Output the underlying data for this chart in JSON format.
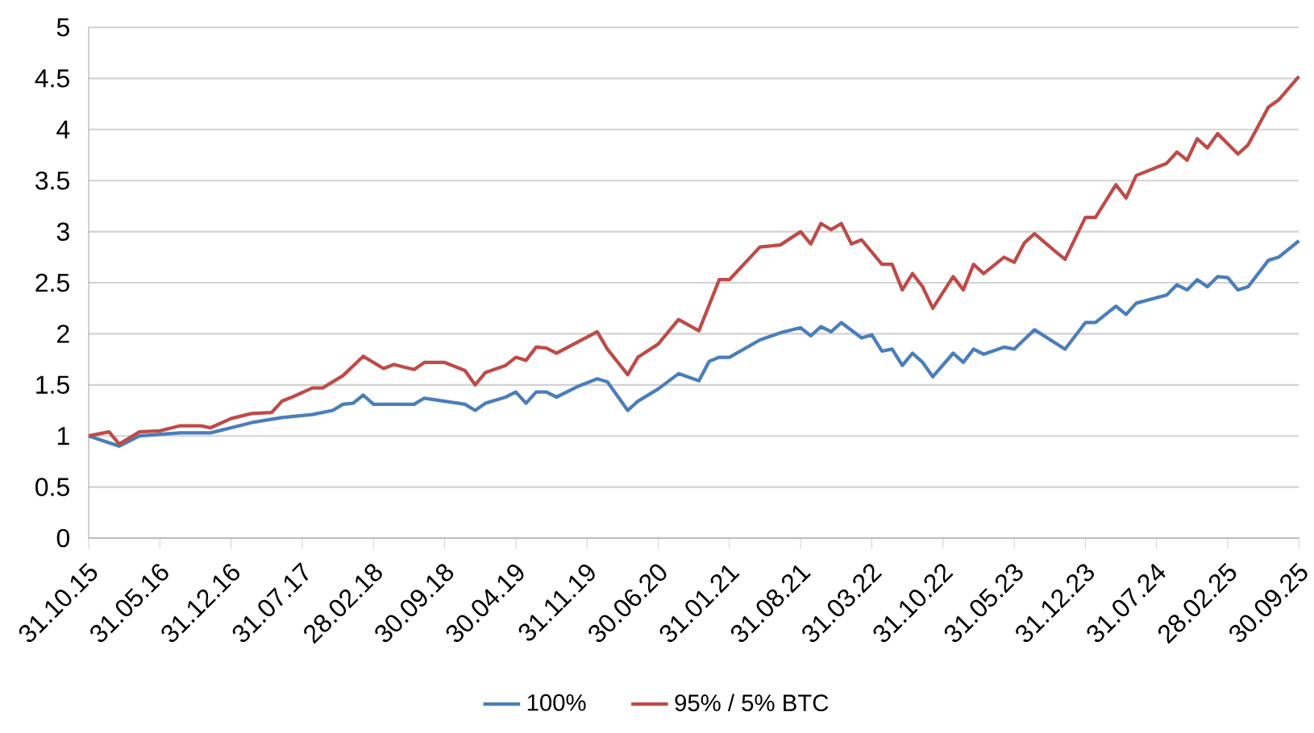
{
  "chart_data": {
    "type": "line",
    "line_style": "solid",
    "marker": "none",
    "grid": "y",
    "legend": "bottom",
    "xlim": [
      "2015-10",
      "2025-09"
    ],
    "xticks": [
      {
        "value": "2015-10",
        "label": "31.10.15"
      },
      {
        "value": "2016-05",
        "label": "31.05.16"
      },
      {
        "value": "2016-12",
        "label": "31.12.16"
      },
      {
        "value": "2017-07",
        "label": "31.07.17"
      },
      {
        "value": "2018-02",
        "label": "28.02.18"
      },
      {
        "value": "2018-09",
        "label": "30.09.18"
      },
      {
        "value": "2019-04",
        "label": "30.04.19"
      },
      {
        "value": "2019-11",
        "label": "31.11.19"
      },
      {
        "value": "2020-06",
        "label": "30.06.20"
      },
      {
        "value": "2021-01",
        "label": "31.01.21"
      },
      {
        "value": "2021-08",
        "label": "31.08.21"
      },
      {
        "value": "2022-03",
        "label": "31.03.22"
      },
      {
        "value": "2022-10",
        "label": "31.10.22"
      },
      {
        "value": "2023-05",
        "label": "31.05.23"
      },
      {
        "value": "2023-12",
        "label": "31.12.23"
      },
      {
        "value": "2024-07",
        "label": "31.07.24"
      },
      {
        "value": "2025-02",
        "label": "28.02.25"
      },
      {
        "value": "2025-09",
        "label": "30.09.25"
      }
    ],
    "ylim": [
      0,
      5
    ],
    "yticks": [
      0,
      0.5,
      1,
      1.5,
      2,
      2.5,
      3,
      3.5,
      4,
      4.5,
      5
    ],
    "series": [
      {
        "name": "100%",
        "color": "#4a7ebb",
        "x": [
          "2015-10",
          "2016-01",
          "2016-03",
          "2016-07",
          "2016-10",
          "2017-02",
          "2017-05",
          "2017-08",
          "2017-10",
          "2017-11",
          "2017-12",
          "2018-01",
          "2018-02",
          "2018-06",
          "2018-07",
          "2018-09",
          "2018-11",
          "2018-12",
          "2019-01",
          "2019-03",
          "2019-04",
          "2019-05",
          "2019-06",
          "2019-07",
          "2019-08",
          "2019-10",
          "2019-12",
          "2020-01",
          "2020-03",
          "2020-04",
          "2020-06",
          "2020-08",
          "2020-10",
          "2020-11",
          "2020-12",
          "2021-01",
          "2021-04",
          "2021-06",
          "2021-08",
          "2021-09",
          "2021-10",
          "2021-11",
          "2021-12",
          "2022-02",
          "2022-03",
          "2022-04",
          "2022-05",
          "2022-06",
          "2022-07",
          "2022-08",
          "2022-09",
          "2022-11",
          "2022-12",
          "2023-01",
          "2023-02",
          "2023-04",
          "2023-05",
          "2023-07",
          "2023-10",
          "2023-12",
          "2024-01",
          "2024-03",
          "2024-04",
          "2024-05",
          "2024-08",
          "2024-09",
          "2024-10",
          "2024-11",
          "2024-12",
          "2025-01",
          "2025-02",
          "2025-03",
          "2025-04",
          "2025-06",
          "2025-07",
          "2025-09"
        ],
        "values": [
          1.0,
          0.9,
          1.0,
          1.03,
          1.03,
          1.13,
          1.18,
          1.21,
          1.25,
          1.31,
          1.32,
          1.4,
          1.31,
          1.31,
          1.37,
          1.34,
          1.31,
          1.25,
          1.32,
          1.38,
          1.43,
          1.32,
          1.43,
          1.43,
          1.38,
          1.48,
          1.56,
          1.53,
          1.25,
          1.34,
          1.46,
          1.61,
          1.54,
          1.73,
          1.77,
          1.77,
          1.94,
          2.01,
          2.06,
          1.98,
          2.07,
          2.02,
          2.11,
          1.96,
          1.99,
          1.83,
          1.85,
          1.69,
          1.81,
          1.72,
          1.58,
          1.81,
          1.72,
          1.85,
          1.8,
          1.87,
          1.85,
          2.04,
          1.85,
          2.11,
          2.11,
          2.27,
          2.19,
          2.3,
          2.38,
          2.48,
          2.43,
          2.53,
          2.46,
          2.56,
          2.55,
          2.43,
          2.46,
          2.72,
          2.75,
          2.91
        ]
      },
      {
        "name": "95% / 5% BTC",
        "color": "#be4b48",
        "x": [
          "2015-10",
          "2015-12",
          "2016-01",
          "2016-03",
          "2016-05",
          "2016-07",
          "2016-09",
          "2016-10",
          "2016-12",
          "2017-02",
          "2017-04",
          "2017-05",
          "2017-06",
          "2017-08",
          "2017-09",
          "2017-11",
          "2018-01",
          "2018-03",
          "2018-04",
          "2018-06",
          "2018-07",
          "2018-09",
          "2018-11",
          "2018-12",
          "2019-01",
          "2019-03",
          "2019-04",
          "2019-05",
          "2019-06",
          "2019-07",
          "2019-08",
          "2019-12",
          "2020-01",
          "2020-03",
          "2020-04",
          "2020-06",
          "2020-08",
          "2020-10",
          "2020-12",
          "2021-01",
          "2021-04",
          "2021-06",
          "2021-08",
          "2021-09",
          "2021-10",
          "2021-11",
          "2021-12",
          "2022-01",
          "2022-02",
          "2022-04",
          "2022-05",
          "2022-06",
          "2022-07",
          "2022-08",
          "2022-09",
          "2022-11",
          "2022-12",
          "2023-01",
          "2023-02",
          "2023-04",
          "2023-05",
          "2023-06",
          "2023-07",
          "2023-09",
          "2023-10",
          "2023-12",
          "2024-01",
          "2024-03",
          "2024-04",
          "2024-05",
          "2024-08",
          "2024-09",
          "2024-10",
          "2024-11",
          "2024-12",
          "2025-01",
          "2025-03",
          "2025-04",
          "2025-06",
          "2025-07",
          "2025-09"
        ],
        "values": [
          1.0,
          1.04,
          0.92,
          1.04,
          1.05,
          1.1,
          1.1,
          1.08,
          1.17,
          1.22,
          1.23,
          1.34,
          1.38,
          1.47,
          1.47,
          1.59,
          1.78,
          1.66,
          1.7,
          1.65,
          1.72,
          1.72,
          1.64,
          1.5,
          1.62,
          1.69,
          1.77,
          1.74,
          1.87,
          1.86,
          1.81,
          2.02,
          1.85,
          1.6,
          1.77,
          1.9,
          2.14,
          2.03,
          2.53,
          2.53,
          2.85,
          2.87,
          3.0,
          2.88,
          3.08,
          3.02,
          3.08,
          2.88,
          2.92,
          2.68,
          2.68,
          2.43,
          2.59,
          2.46,
          2.25,
          2.56,
          2.43,
          2.68,
          2.59,
          2.75,
          2.7,
          2.89,
          2.98,
          2.81,
          2.73,
          3.14,
          3.14,
          3.46,
          3.33,
          3.55,
          3.67,
          3.78,
          3.7,
          3.91,
          3.82,
          3.96,
          3.76,
          3.85,
          4.22,
          4.29,
          4.52
        ]
      }
    ]
  }
}
